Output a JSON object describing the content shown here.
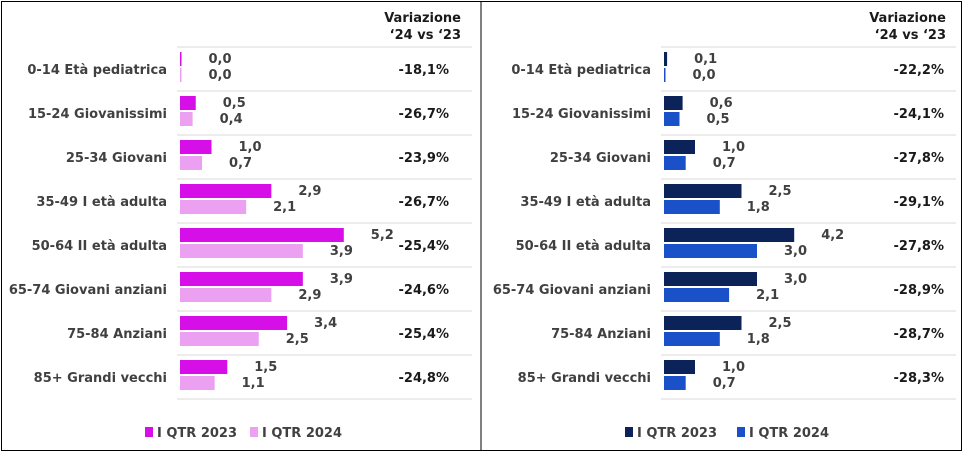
{
  "chart_data": [
    {
      "type": "bar",
      "orientation": "horizontal",
      "categories": [
        "0-14 Età pediatrica",
        "15-24 Giovanissimi",
        "25-34 Giovani",
        "35-49 I età adulta",
        "50-64 II età adulta",
        "65-74 Giovani anziani",
        "75-84 Anziani",
        "85+ Grandi vecchi"
      ],
      "series": [
        {
          "name": "I QTR 2023",
          "values": [
            0.0,
            0.5,
            1.0,
            2.9,
            5.2,
            3.9,
            3.4,
            1.5
          ],
          "labels": [
            "0,0",
            "0,5",
            "1,0",
            "2,9",
            "5,2",
            "3,9",
            "3,4",
            "1,5"
          ],
          "color": "#d60fe8"
        },
        {
          "name": "I QTR 2024",
          "values": [
            0.0,
            0.4,
            0.7,
            2.1,
            3.9,
            2.9,
            2.5,
            1.1
          ],
          "labels": [
            "0,0",
            "0,4",
            "0,7",
            "2,1",
            "3,9",
            "2,9",
            "2,5",
            "1,1"
          ],
          "color": "#eca0f2"
        }
      ],
      "variation_header": [
        "Variazione",
        "‘24 vs ‘23"
      ],
      "variation": [
        "-18,1%",
        "-26,7%",
        "-23,9%",
        "-26,7%",
        "-25,4%",
        "-24,6%",
        "-25,4%",
        "-24,8%"
      ],
      "grid": false,
      "legend_position": "bottom"
    },
    {
      "type": "bar",
      "orientation": "horizontal",
      "categories": [
        "0-14 Età pediatrica",
        "15-24 Giovanissimi",
        "25-34 Giovani",
        "35-49 I età adulta",
        "50-64 II età adulta",
        "65-74 Giovani anziani",
        "75-84 Anziani",
        "85+ Grandi vecchi"
      ],
      "series": [
        {
          "name": "I QTR 2023",
          "values": [
            0.1,
            0.6,
            1.0,
            2.5,
            4.2,
            3.0,
            2.5,
            1.0
          ],
          "labels": [
            "0,1",
            "0,6",
            "1,0",
            "2,5",
            "4,2",
            "3,0",
            "2,5",
            "1,0"
          ],
          "color": "#0b2359"
        },
        {
          "name": "I QTR 2024",
          "values": [
            0.0,
            0.5,
            0.7,
            1.8,
            3.0,
            2.1,
            1.8,
            0.7
          ],
          "labels": [
            "0,0",
            "0,5",
            "0,7",
            "1,8",
            "3,0",
            "2,1",
            "1,8",
            "0,7"
          ],
          "color": "#1a50c8"
        }
      ],
      "variation_header": [
        "Variazione",
        "‘24 vs ‘23"
      ],
      "variation": [
        "-22,2%",
        "-24,1%",
        "-27,8%",
        "-29,1%",
        "-27,8%",
        "-28,9%",
        "-28,7%",
        "-28,3%"
      ],
      "grid": false,
      "legend_position": "bottom"
    }
  ]
}
